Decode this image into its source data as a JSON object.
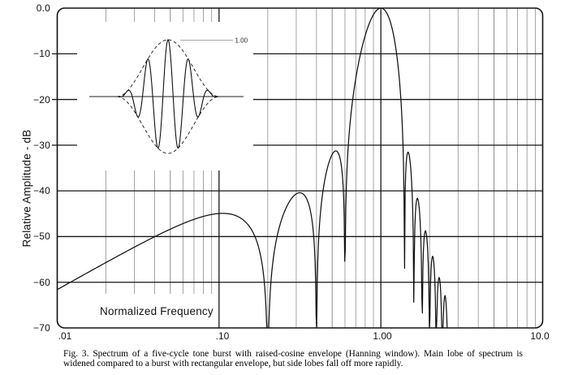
{
  "chart_data": {
    "type": "line",
    "title": "",
    "xlabel": "Normalized Frequency",
    "ylabel": "Relative Amplitude - dB",
    "xscale": "log",
    "yscale": "linear",
    "xlim": [
      0.01,
      10
    ],
    "ylim": [
      -70,
      0
    ],
    "x_ticks": {
      "values": [
        0.01,
        0.1,
        1.0,
        10.0
      ],
      "labels": [
        ".01",
        ".10",
        "1.00",
        "10.0"
      ]
    },
    "y_ticks": {
      "values": [
        0,
        -10,
        -20,
        -30,
        -40,
        -50,
        -60,
        -70
      ],
      "labels": [
        "0.0",
        "−10",
        "−20",
        "−30",
        "−40",
        "−50",
        "−60",
        "−70"
      ]
    },
    "grid": {
      "major": "decade frequencies and every 10 dB",
      "minor": "logarithmic intermediate frequencies 2-9 per decade"
    },
    "legend": "none",
    "series": [
      {
        "name": "Spectrum of five-cycle tone burst with raised-cosine (Hanning) envelope",
        "color": "#101010",
        "generator": {
          "carrier": "sine",
          "cycles": 5,
          "window": "hann",
          "f_start": 0.01,
          "f_end": 2.58,
          "db_floor": -70
        },
        "keypoints": [
          {
            "f": 0.01,
            "db": -62
          },
          {
            "f": 0.1,
            "db": -45,
            "feature": "low-frequency hump"
          },
          {
            "f": 0.2,
            "db": -70,
            "feature": "null"
          },
          {
            "f": 0.3,
            "db": -40.5,
            "feature": "side lobe"
          },
          {
            "f": 0.4,
            "db": -62,
            "feature": "null"
          },
          {
            "f": 0.49,
            "db": -31.5,
            "feature": "side lobe"
          },
          {
            "f": 0.6,
            "db": -58,
            "feature": "null"
          },
          {
            "f": 1.0,
            "db": 0,
            "feature": "main lobe peak"
          },
          {
            "f": 1.4,
            "db": -57,
            "feature": "null"
          },
          {
            "f": 1.48,
            "db": -32,
            "feature": "side lobe"
          },
          {
            "f": 1.7,
            "db": -42,
            "feature": "side lobe"
          },
          {
            "f": 1.88,
            "db": -49,
            "feature": "side lobe"
          },
          {
            "f": 2.09,
            "db": -55,
            "feature": "side lobe"
          },
          {
            "f": 2.32,
            "db": -60,
            "feature": "side lobe"
          },
          {
            "f": 2.51,
            "db": -64,
            "feature": "side lobe"
          }
        ]
      }
    ],
    "inset": {
      "description": "Five-cycle tone burst waveform with dashed raised-cosine envelope",
      "cycles": 5,
      "envelope": "raised-cosine (dashed)",
      "peak_label": "1.00"
    }
  },
  "caption": {
    "line1": "Fig. 3.  Spectrum of a five-cycle tone burst with raised-cosine envelope (Hanning window). Main lobe of spectrum is",
    "line2": "widened compared to a burst with rectangular envelope, but side lobes fall off more rapidly."
  }
}
